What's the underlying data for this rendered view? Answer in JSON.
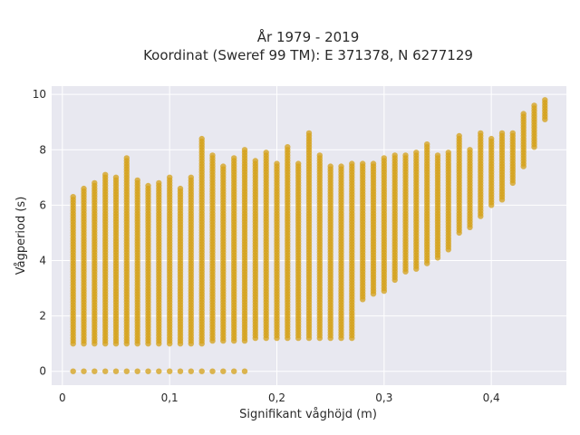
{
  "chart_data": {
    "type": "scatter",
    "title_line1": "År 1979 - 2019",
    "title_line2": "Koordinat (Sweref 99 TM): E 371378, N 6277129",
    "xlabel": "Signifikant våghöjd (m)",
    "ylabel": "Vågperiod (s)",
    "xlim": [
      -0.01,
      0.47
    ],
    "ylim": [
      -0.5,
      10.3
    ],
    "x_ticks": [
      0,
      0.1,
      0.2,
      0.3,
      0.4
    ],
    "x_tick_labels": [
      "0",
      "0,1",
      "0,2",
      "0,3",
      "0,4"
    ],
    "y_ticks": [
      0,
      2,
      4,
      6,
      8,
      10
    ],
    "y_tick_labels": [
      "0",
      "2",
      "4",
      "6",
      "8",
      "10"
    ],
    "grid": true,
    "marker_color": "#D4A017",
    "point_columns": [
      {
        "x": 0.01,
        "y_min": 1.0,
        "y_max": 6.3,
        "zero": true
      },
      {
        "x": 0.02,
        "y_min": 1.0,
        "y_max": 6.6,
        "zero": true
      },
      {
        "x": 0.03,
        "y_min": 1.0,
        "y_max": 6.8,
        "zero": true
      },
      {
        "x": 0.04,
        "y_min": 1.0,
        "y_max": 7.1,
        "zero": true
      },
      {
        "x": 0.05,
        "y_min": 1.0,
        "y_max": 7.0,
        "zero": true
      },
      {
        "x": 0.06,
        "y_min": 1.0,
        "y_max": 7.7,
        "zero": true
      },
      {
        "x": 0.07,
        "y_min": 1.0,
        "y_max": 6.9,
        "zero": true
      },
      {
        "x": 0.08,
        "y_min": 1.0,
        "y_max": 6.7,
        "zero": true
      },
      {
        "x": 0.09,
        "y_min": 1.0,
        "y_max": 6.8,
        "zero": true
      },
      {
        "x": 0.1,
        "y_min": 1.0,
        "y_max": 7.0,
        "zero": true
      },
      {
        "x": 0.11,
        "y_min": 1.0,
        "y_max": 6.6,
        "zero": true
      },
      {
        "x": 0.12,
        "y_min": 1.0,
        "y_max": 7.0,
        "zero": true
      },
      {
        "x": 0.13,
        "y_min": 1.0,
        "y_max": 8.4,
        "zero": true
      },
      {
        "x": 0.14,
        "y_min": 1.1,
        "y_max": 7.8,
        "zero": true
      },
      {
        "x": 0.15,
        "y_min": 1.1,
        "y_max": 7.4,
        "zero": true
      },
      {
        "x": 0.16,
        "y_min": 1.1,
        "y_max": 7.7,
        "zero": true
      },
      {
        "x": 0.17,
        "y_min": 1.1,
        "y_max": 8.0,
        "zero": true
      },
      {
        "x": 0.18,
        "y_min": 1.2,
        "y_max": 7.6,
        "zero": false
      },
      {
        "x": 0.19,
        "y_min": 1.2,
        "y_max": 7.9,
        "zero": false
      },
      {
        "x": 0.2,
        "y_min": 1.2,
        "y_max": 7.5,
        "zero": false
      },
      {
        "x": 0.21,
        "y_min": 1.2,
        "y_max": 8.1,
        "zero": false
      },
      {
        "x": 0.22,
        "y_min": 1.2,
        "y_max": 7.5,
        "zero": false
      },
      {
        "x": 0.23,
        "y_min": 1.2,
        "y_max": 8.6,
        "zero": false
      },
      {
        "x": 0.24,
        "y_min": 1.2,
        "y_max": 7.8,
        "zero": false
      },
      {
        "x": 0.25,
        "y_min": 1.2,
        "y_max": 7.4,
        "zero": false
      },
      {
        "x": 0.26,
        "y_min": 1.2,
        "y_max": 7.4,
        "zero": false
      },
      {
        "x": 0.27,
        "y_min": 1.2,
        "y_max": 7.5,
        "zero": false
      },
      {
        "x": 0.28,
        "y_min": 2.6,
        "y_max": 7.5,
        "zero": false
      },
      {
        "x": 0.29,
        "y_min": 2.8,
        "y_max": 7.5,
        "zero": false
      },
      {
        "x": 0.3,
        "y_min": 2.9,
        "y_max": 7.7,
        "zero": false
      },
      {
        "x": 0.31,
        "y_min": 3.3,
        "y_max": 7.8,
        "zero": false
      },
      {
        "x": 0.32,
        "y_min": 3.6,
        "y_max": 7.8,
        "zero": false
      },
      {
        "x": 0.33,
        "y_min": 3.7,
        "y_max": 7.9,
        "zero": false
      },
      {
        "x": 0.34,
        "y_min": 3.9,
        "y_max": 8.2,
        "zero": false
      },
      {
        "x": 0.35,
        "y_min": 4.1,
        "y_max": 7.8,
        "zero": false
      },
      {
        "x": 0.36,
        "y_min": 4.4,
        "y_max": 7.9,
        "zero": false
      },
      {
        "x": 0.37,
        "y_min": 5.0,
        "y_max": 8.5,
        "zero": false
      },
      {
        "x": 0.38,
        "y_min": 5.2,
        "y_max": 8.0,
        "zero": false
      },
      {
        "x": 0.39,
        "y_min": 5.6,
        "y_max": 8.6,
        "zero": false
      },
      {
        "x": 0.4,
        "y_min": 6.0,
        "y_max": 8.4,
        "zero": false
      },
      {
        "x": 0.41,
        "y_min": 6.2,
        "y_max": 8.6,
        "zero": false
      },
      {
        "x": 0.42,
        "y_min": 6.8,
        "y_max": 8.6,
        "zero": false
      },
      {
        "x": 0.43,
        "y_min": 7.4,
        "y_max": 9.3,
        "zero": false
      },
      {
        "x": 0.44,
        "y_min": 8.1,
        "y_max": 9.6,
        "zero": false
      },
      {
        "x": 0.45,
        "y_min": 9.1,
        "y_max": 9.8,
        "zero": false
      }
    ]
  }
}
